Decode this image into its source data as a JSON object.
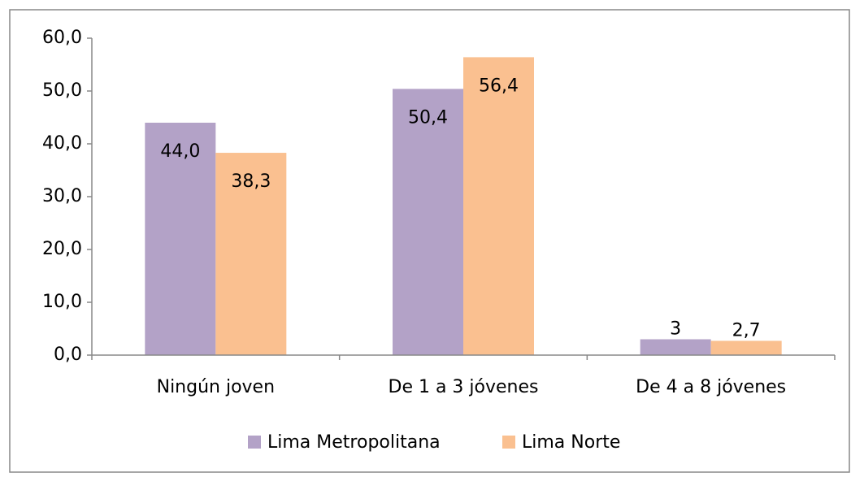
{
  "chart_data": {
    "type": "bar",
    "categories": [
      "Ningún joven",
      "De 1 a 3 jóvenes",
      "De 4 a 8 jóvenes"
    ],
    "series": [
      {
        "name": "Lima Metropolitana",
        "color": "#b3a2c7",
        "values": [
          44.0,
          50.4,
          3
        ],
        "value_labels": [
          "44,0",
          "50,4",
          "3"
        ]
      },
      {
        "name": "Lima Norte",
        "color": "#fac090",
        "values": [
          38.3,
          56.4,
          2.7
        ],
        "value_labels": [
          "38,3",
          "56,4",
          "2,7"
        ]
      }
    ],
    "ylim": [
      0,
      60
    ],
    "yticks": [
      {
        "value": 0,
        "label": "0,0"
      },
      {
        "value": 10,
        "label": "10,0"
      },
      {
        "value": 20,
        "label": "20,0"
      },
      {
        "value": 30,
        "label": "30,0"
      },
      {
        "value": 40,
        "label": "40,0"
      },
      {
        "value": 50,
        "label": "50,0"
      },
      {
        "value": 60,
        "label": "60,0"
      }
    ],
    "legend": "bottom"
  }
}
